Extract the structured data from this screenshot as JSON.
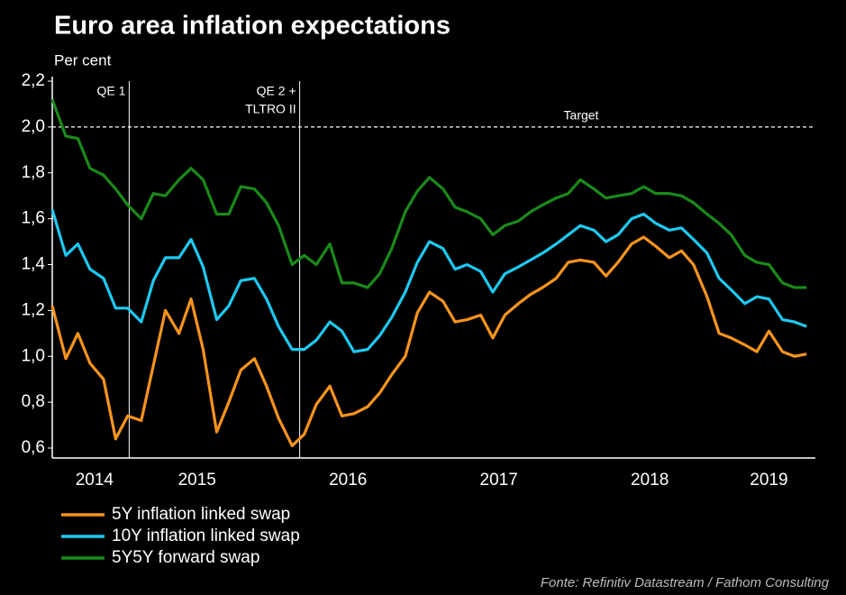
{
  "chart_data": {
    "type": "line",
    "title": "Euro area inflation expectations",
    "y_label": "Per cent",
    "source": "Fonte: Refinitiv Datastream / Fathom Consulting",
    "x": [
      2014.54,
      2014.63,
      2014.71,
      2014.79,
      2014.88,
      2014.96,
      2015.04,
      2015.13,
      2015.21,
      2015.29,
      2015.38,
      2015.46,
      2015.54,
      2015.63,
      2015.71,
      2015.79,
      2015.88,
      2015.96,
      2016.04,
      2016.13,
      2016.21,
      2016.29,
      2016.38,
      2016.46,
      2016.54,
      2016.63,
      2016.71,
      2016.79,
      2016.88,
      2016.96,
      2017.04,
      2017.13,
      2017.21,
      2017.29,
      2017.38,
      2017.46,
      2017.54,
      2017.63,
      2017.71,
      2017.79,
      2017.88,
      2017.96,
      2018.04,
      2018.13,
      2018.21,
      2018.29,
      2018.38,
      2018.46,
      2018.54,
      2018.63,
      2018.71,
      2018.79,
      2018.88,
      2018.96,
      2019.04,
      2019.13,
      2019.21,
      2019.29,
      2019.38,
      2019.46,
      2019.54
    ],
    "xlim": [
      2014.54,
      2019.58
    ],
    "xticks": [
      {
        "value": 2014.82,
        "label": "2014"
      },
      {
        "value": 2015.5,
        "label": "2015"
      },
      {
        "value": 2016.5,
        "label": "2016"
      },
      {
        "value": 2017.5,
        "label": "2017"
      },
      {
        "value": 2018.5,
        "label": "2018"
      },
      {
        "value": 2019.29,
        "label": "2019"
      }
    ],
    "ylim": [
      0.6,
      2.2
    ],
    "yticks": [
      {
        "value": 0.6,
        "label": "0,6"
      },
      {
        "value": 0.8,
        "label": "0,8"
      },
      {
        "value": 1.0,
        "label": "1,0"
      },
      {
        "value": 1.2,
        "label": "1,2"
      },
      {
        "value": 1.4,
        "label": "1,4"
      },
      {
        "value": 1.6,
        "label": "1,6"
      },
      {
        "value": 1.8,
        "label": "1,8"
      },
      {
        "value": 2.0,
        "label": "2,0"
      },
      {
        "value": 2.2,
        "label": "2,2"
      }
    ],
    "vlines": [
      {
        "x": 2015.05,
        "label": [
          "QE 1"
        ]
      },
      {
        "x": 2016.18,
        "label": [
          "QE 2 +",
          "TLTRO II"
        ]
      }
    ],
    "hline": {
      "y": 2.0,
      "label": "Target"
    },
    "series": [
      {
        "name": "5Y inflation linked swap",
        "color": "#f7941d",
        "values": [
          1.22,
          0.99,
          1.1,
          0.97,
          0.9,
          0.64,
          0.74,
          0.72,
          0.96,
          1.2,
          1.1,
          1.25,
          1.03,
          0.67,
          0.8,
          0.94,
          0.99,
          0.87,
          0.73,
          0.61,
          0.66,
          0.79,
          0.87,
          0.74,
          0.75,
          0.78,
          0.84,
          0.92,
          1.0,
          1.19,
          1.28,
          1.24,
          1.15,
          1.16,
          1.18,
          1.08,
          1.18,
          1.23,
          1.27,
          1.3,
          1.34,
          1.41,
          1.42,
          1.41,
          1.35,
          1.41,
          1.49,
          1.52,
          1.48,
          1.43,
          1.46,
          1.4,
          1.26,
          1.1,
          1.08,
          1.05,
          1.02,
          1.11,
          1.02,
          1.0,
          1.01
        ]
      },
      {
        "name": "10Y inflation linked swap",
        "color": "#1ec8f0",
        "values": [
          1.64,
          1.44,
          1.49,
          1.38,
          1.34,
          1.21,
          1.21,
          1.15,
          1.33,
          1.43,
          1.43,
          1.51,
          1.39,
          1.16,
          1.22,
          1.33,
          1.34,
          1.25,
          1.13,
          1.03,
          1.03,
          1.07,
          1.15,
          1.11,
          1.02,
          1.03,
          1.09,
          1.17,
          1.28,
          1.41,
          1.5,
          1.47,
          1.38,
          1.4,
          1.37,
          1.28,
          1.36,
          1.39,
          1.42,
          1.45,
          1.49,
          1.53,
          1.57,
          1.55,
          1.5,
          1.53,
          1.6,
          1.62,
          1.58,
          1.55,
          1.56,
          1.51,
          1.45,
          1.34,
          1.29,
          1.23,
          1.26,
          1.25,
          1.16,
          1.15,
          1.13
        ]
      },
      {
        "name": "5Y5Y forward swap",
        "color": "#1a8a1a",
        "values": [
          2.12,
          1.96,
          1.95,
          1.82,
          1.79,
          1.73,
          1.66,
          1.6,
          1.71,
          1.7,
          1.77,
          1.82,
          1.77,
          1.62,
          1.62,
          1.74,
          1.73,
          1.67,
          1.57,
          1.4,
          1.44,
          1.4,
          1.49,
          1.32,
          1.32,
          1.3,
          1.36,
          1.47,
          1.63,
          1.72,
          1.78,
          1.73,
          1.65,
          1.63,
          1.6,
          1.53,
          1.57,
          1.59,
          1.63,
          1.66,
          1.69,
          1.71,
          1.77,
          1.73,
          1.69,
          1.7,
          1.71,
          1.74,
          1.71,
          1.71,
          1.7,
          1.67,
          1.62,
          1.58,
          1.53,
          1.44,
          1.41,
          1.4,
          1.32,
          1.3,
          1.3
        ]
      }
    ]
  }
}
